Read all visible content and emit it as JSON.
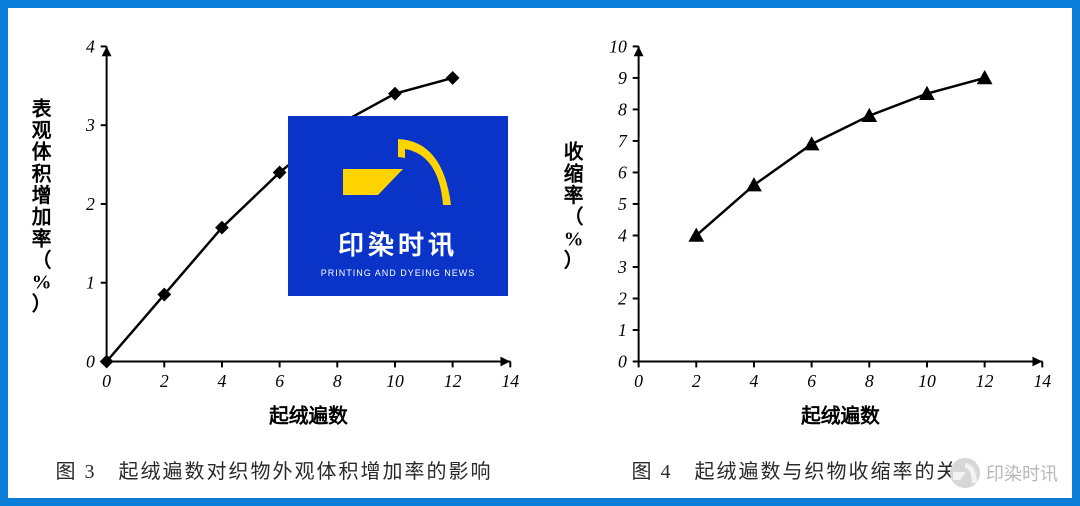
{
  "frame": {
    "border_color": "#0a7dd8",
    "background_color": "#ffffff"
  },
  "watermark": {
    "title": "印染时讯",
    "subtitle": "PRINTING AND DYEING NEWS",
    "bg_color": "#0a34c8",
    "accent_color": "#ffd400"
  },
  "corner_watermark": {
    "text": "印染时讯"
  },
  "left_chart": {
    "type": "line",
    "caption": "图 3　起绒遍数对织物外观体积增加率的影响",
    "x_label": "起绒遍数",
    "y_label": "表观体积增加率（%）",
    "xlim": [
      0,
      14
    ],
    "ylim": [
      0,
      4
    ],
    "x_ticks": [
      0,
      2,
      4,
      6,
      8,
      10,
      12,
      14
    ],
    "y_ticks": [
      0,
      1,
      2,
      3,
      4
    ],
    "series": [
      {
        "marker": "diamond",
        "line_color": "#000000",
        "line_width": 2.5,
        "marker_size": 7,
        "points": [
          {
            "x": 0,
            "y": 0.0
          },
          {
            "x": 2,
            "y": 0.85
          },
          {
            "x": 4,
            "y": 1.7
          },
          {
            "x": 6,
            "y": 2.4
          },
          {
            "x": 8,
            "y": 3.0
          },
          {
            "x": 10,
            "y": 3.4
          },
          {
            "x": 12,
            "y": 3.6
          }
        ]
      }
    ],
    "axis_color": "#000000",
    "tick_fontsize": 18,
    "label_fontsize": 20
  },
  "right_chart": {
    "type": "line",
    "caption": "图 4　起绒遍数与织物收缩率的关系",
    "x_label": "起绒遍数",
    "y_label": "收缩率（%）",
    "xlim": [
      0,
      14
    ],
    "ylim": [
      0,
      10
    ],
    "x_ticks": [
      0,
      2,
      4,
      6,
      8,
      10,
      12,
      14
    ],
    "y_ticks": [
      0,
      1,
      2,
      3,
      4,
      5,
      6,
      7,
      8,
      9,
      10
    ],
    "series": [
      {
        "marker": "triangle",
        "line_color": "#000000",
        "line_width": 2.5,
        "marker_size": 8,
        "points": [
          {
            "x": 2,
            "y": 4.0
          },
          {
            "x": 4,
            "y": 5.6
          },
          {
            "x": 6,
            "y": 6.9
          },
          {
            "x": 8,
            "y": 7.8
          },
          {
            "x": 10,
            "y": 8.5
          },
          {
            "x": 12,
            "y": 9.0
          }
        ]
      }
    ],
    "axis_color": "#000000",
    "tick_fontsize": 18,
    "label_fontsize": 20
  }
}
